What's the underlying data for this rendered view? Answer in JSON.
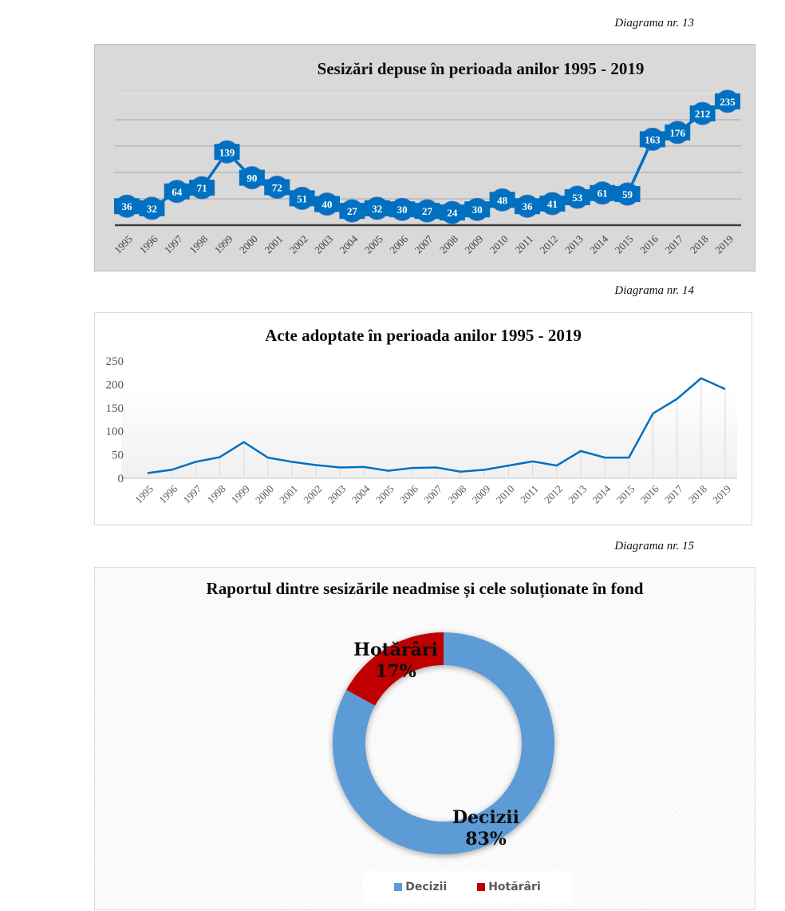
{
  "captions": [
    "Diagrama nr. 13",
    "Diagrama nr. 14",
    "Diagrama nr. 15"
  ],
  "colors": {
    "line": "#0070c0",
    "decizii": "#5b9bd5",
    "hotarari": "#c00000"
  },
  "chart_data": [
    {
      "type": "line",
      "title": "Sesizări depuse în perioada anilor 1995 - 2019",
      "xlabel": "",
      "ylabel": "",
      "ylim": [
        0,
        250
      ],
      "grid": true,
      "y_ticks_visible": false,
      "data_labels": true,
      "categories": [
        "1995",
        "1996",
        "1997",
        "1998",
        "1999",
        "2000",
        "2001",
        "2002",
        "2003",
        "2004",
        "2005",
        "2006",
        "2007",
        "2008",
        "2009",
        "2010",
        "2011",
        "2012",
        "2013",
        "2014",
        "2015",
        "2016",
        "2017",
        "2018",
        "2019"
      ],
      "series": [
        {
          "name": "Sesizări",
          "values": [
            36,
            32,
            64,
            71,
            139,
            90,
            72,
            51,
            40,
            27,
            32,
            30,
            27,
            24,
            30,
            48,
            36,
            41,
            53,
            61,
            59,
            163,
            176,
            212,
            235
          ]
        }
      ]
    },
    {
      "type": "line",
      "title": "Acte adoptate în perioada anilor 1995 - 2019",
      "xlabel": "",
      "ylabel": "",
      "ylim": [
        0,
        250
      ],
      "y_ticks": [
        "0",
        "50",
        "100",
        "150",
        "200",
        "250"
      ],
      "grid": false,
      "drop_lines": true,
      "categories": [
        "1995",
        "1996",
        "1997",
        "1998",
        "1999",
        "2000",
        "2001",
        "2002",
        "2003",
        "2004",
        "2005",
        "2006",
        "2007",
        "2008",
        "2009",
        "2010",
        "2011",
        "2012",
        "2013",
        "2014",
        "2015",
        "2016",
        "2017",
        "2018",
        "2019"
      ],
      "series": [
        {
          "name": "Acte adoptate",
          "values": [
            11,
            18,
            35,
            45,
            77,
            44,
            35,
            28,
            23,
            24,
            16,
            22,
            23,
            14,
            18,
            27,
            36,
            27,
            58,
            44,
            44,
            138,
            169,
            213,
            190
          ]
        }
      ]
    },
    {
      "type": "pie",
      "donut": true,
      "title": "Raportul dintre sesizările neadmise și cele soluționate în fond",
      "slices": [
        {
          "label": "Decizii",
          "value": 83,
          "label_text": "83%"
        },
        {
          "label": "Hotărâri",
          "value": 17,
          "label_text": "17%"
        }
      ],
      "legend": {
        "position": "bottom",
        "entries": [
          "Decizii",
          "Hotărâri"
        ]
      }
    }
  ]
}
